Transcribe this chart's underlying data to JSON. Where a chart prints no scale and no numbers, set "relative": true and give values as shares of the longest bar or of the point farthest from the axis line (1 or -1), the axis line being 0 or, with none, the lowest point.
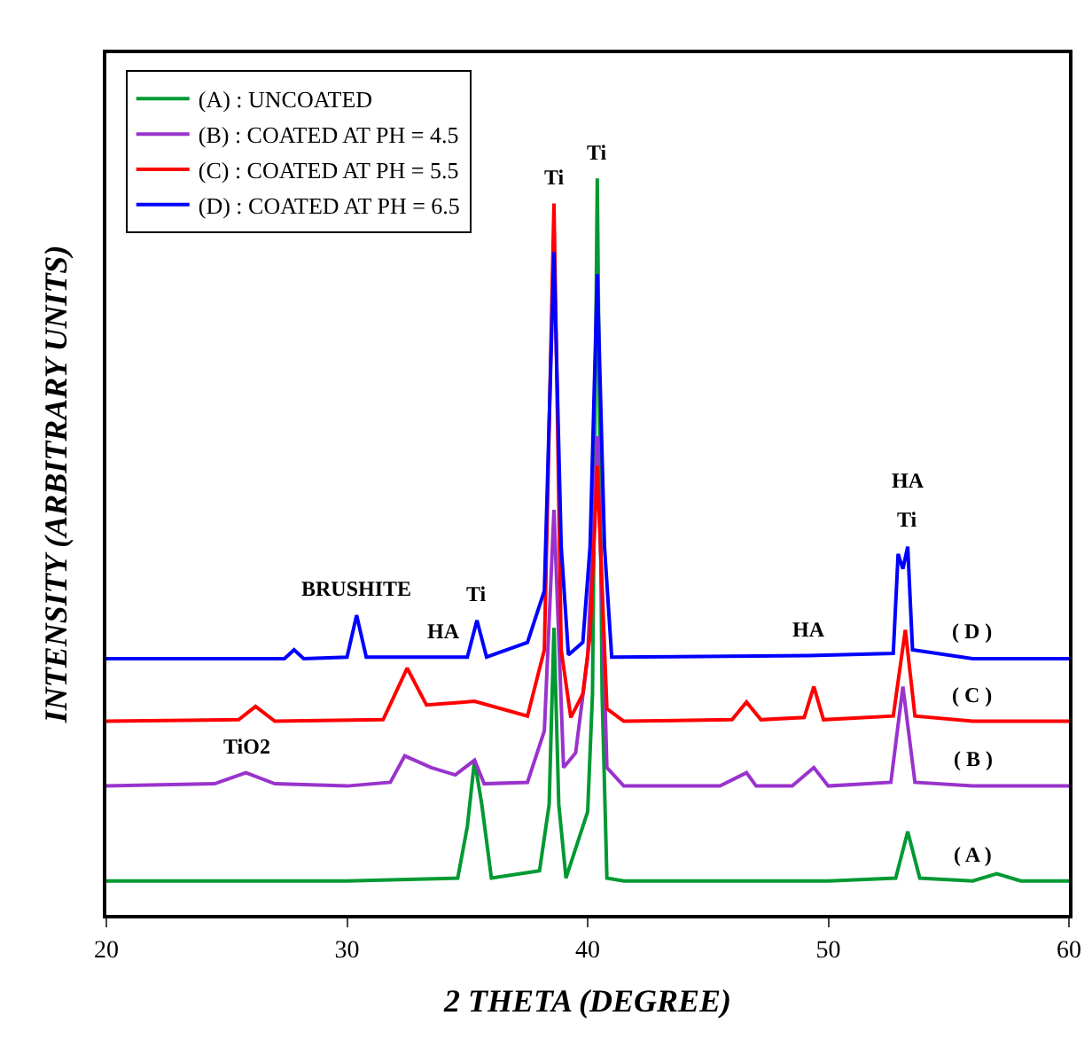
{
  "chart_data": {
    "type": "line",
    "relative": true,
    "xlabel": "2 THETA (DEGREE)",
    "ylabel": "INTENSITY (ARBITRARY UNITS)",
    "xlim": [
      20,
      60
    ],
    "xticks": [
      20,
      30,
      40,
      50,
      60
    ],
    "legend": "top left",
    "marker": "none",
    "line_style": "solid",
    "series": [
      {
        "name": "(A) : UNCOATED",
        "color": "#009933",
        "x": [
          20,
          25,
          30,
          34.6,
          35.0,
          35.3,
          35.6,
          36.0,
          38.0,
          38.4,
          38.6,
          38.8,
          39.1,
          39.5,
          40.0,
          40.2,
          40.4,
          40.6,
          40.8,
          41.5,
          50,
          52.8,
          53.3,
          53.8,
          56,
          57,
          58,
          60
        ],
        "values": [
          0.046,
          0.046,
          0.046,
          0.05,
          0.12,
          0.21,
          0.15,
          0.05,
          0.06,
          0.15,
          0.39,
          0.15,
          0.05,
          0.09,
          0.14,
          0.3,
          1.0,
          0.3,
          0.05,
          0.046,
          0.046,
          0.05,
          0.113,
          0.05,
          0.046,
          0.056,
          0.046,
          0.046
        ]
      },
      {
        "name": "(B) : COATED AT PH = 4.5",
        "color": "#9933cc",
        "x": [
          20,
          24.5,
          25.8,
          27,
          30,
          31.8,
          32.4,
          33.5,
          34.5,
          35.3,
          35.7,
          37.5,
          38.2,
          38.6,
          39.0,
          39.5,
          40.0,
          40.4,
          40.8,
          41.5,
          45.5,
          46.6,
          47,
          48.5,
          49.4,
          50,
          52.6,
          53.1,
          53.6,
          56,
          60
        ],
        "values": [
          0.175,
          0.178,
          0.193,
          0.178,
          0.175,
          0.18,
          0.216,
          0.2,
          0.19,
          0.21,
          0.178,
          0.18,
          0.25,
          0.55,
          0.2,
          0.22,
          0.35,
          0.65,
          0.2,
          0.175,
          0.175,
          0.193,
          0.175,
          0.175,
          0.2,
          0.175,
          0.18,
          0.31,
          0.18,
          0.175,
          0.175
        ]
      },
      {
        "name": "(C) : COATED AT PH = 5.5",
        "color": "#ff0000",
        "x": [
          20,
          25.5,
          26.2,
          27,
          31.5,
          32.5,
          33.3,
          35.3,
          37.5,
          38.2,
          38.6,
          38.9,
          39.3,
          39.8,
          40.1,
          40.4,
          40.8,
          41.5,
          46.0,
          46.6,
          47.2,
          49.0,
          49.4,
          49.8,
          52.7,
          53.2,
          53.6,
          56.0,
          60
        ],
        "values": [
          0.263,
          0.265,
          0.283,
          0.263,
          0.265,
          0.335,
          0.285,
          0.29,
          0.27,
          0.36,
          0.966,
          0.36,
          0.268,
          0.3,
          0.38,
          0.61,
          0.28,
          0.263,
          0.265,
          0.289,
          0.265,
          0.268,
          0.31,
          0.265,
          0.27,
          0.387,
          0.27,
          0.263,
          0.263
        ]
      },
      {
        "name": "(D) : COATED AT PH = 6.5",
        "color": "#0000ff",
        "x": [
          20,
          27.4,
          27.8,
          28.2,
          30.0,
          30.4,
          30.8,
          34.0,
          35.0,
          35.4,
          35.8,
          37.5,
          38.2,
          38.6,
          38.9,
          39.2,
          39.8,
          40.1,
          40.4,
          40.7,
          41.0,
          49.2,
          52.7,
          52.9,
          53.1,
          53.3,
          53.5,
          56.0,
          60
        ],
        "values": [
          0.348,
          0.348,
          0.36,
          0.348,
          0.35,
          0.407,
          0.35,
          0.35,
          0.35,
          0.4,
          0.35,
          0.37,
          0.44,
          0.9,
          0.5,
          0.353,
          0.37,
          0.5,
          0.87,
          0.5,
          0.35,
          0.352,
          0.355,
          0.49,
          0.47,
          0.5,
          0.36,
          0.348,
          0.348
        ]
      }
    ],
    "annotations": [
      {
        "text": "BRUSHITE",
        "x": 30.4,
        "y": 0.407
      },
      {
        "text": "HA",
        "x": 34.0,
        "y": 0.35
      },
      {
        "text": "Ti",
        "x": 35.4,
        "y": 0.4
      },
      {
        "text": "Ti",
        "x": 38.6,
        "y": 0.966
      },
      {
        "text": "Ti",
        "x": 40.4,
        "y": 1.0
      },
      {
        "text": "HA",
        "x": 49.2,
        "y": 0.352
      },
      {
        "text": "Ti",
        "x": 53.3,
        "y": 0.5
      },
      {
        "text": "HA",
        "x": 53.3,
        "y": 0.5
      },
      {
        "text": "TiO2",
        "x": 25.8,
        "y": 0.193
      },
      {
        "text": "( D )",
        "x": 56.0,
        "y": 0.348
      },
      {
        "text": "( C )",
        "x": 56.0,
        "y": 0.263
      },
      {
        "text": "( B )",
        "x": 56.0,
        "y": 0.175
      },
      {
        "text": "( A )",
        "x": 56.0,
        "y": 0.046
      }
    ]
  }
}
